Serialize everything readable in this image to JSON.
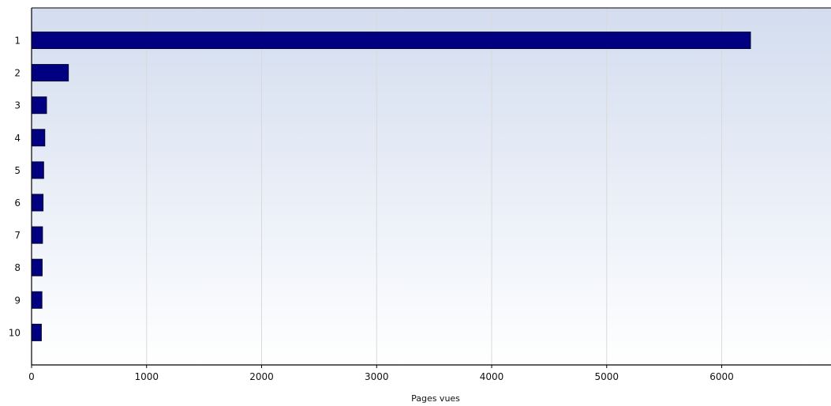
{
  "chart_data": {
    "type": "bar",
    "orientation": "horizontal",
    "categories": [
      "1",
      "2",
      "3",
      "4",
      "5",
      "6",
      "7",
      "8",
      "9",
      "10"
    ],
    "values": [
      6250,
      320,
      130,
      115,
      105,
      100,
      95,
      92,
      90,
      85
    ],
    "xlabel": "Pages vues",
    "xlim": [
      0,
      6950
    ],
    "xticks": [
      0,
      1000,
      2000,
      3000,
      4000,
      5000,
      6000
    ],
    "grid": "vertical",
    "legend": "none",
    "colors": {
      "bar_fill": "#000080",
      "bar_stroke": "#000033",
      "bg_top": "#d3ddef",
      "bg_bottom": "#ffffff",
      "grid": "#d9d9d9",
      "axis": "#000000"
    }
  }
}
